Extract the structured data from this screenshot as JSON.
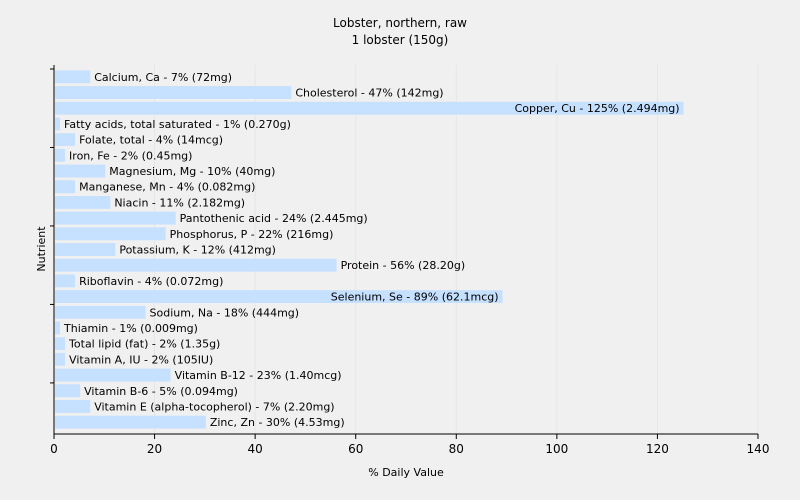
{
  "chart_data": {
    "type": "bar",
    "orientation": "horizontal",
    "title": "Lobster, northern, raw",
    "subtitle": "1 lobster (150g)",
    "xlabel": "% Daily Value",
    "ylabel": "Nutrient",
    "xlim": [
      0,
      140
    ],
    "xticks": [
      0,
      20,
      40,
      60,
      80,
      100,
      120,
      140
    ],
    "grid": true,
    "bar_color": "#c6e0ff",
    "grid_color": "#e6e6e6",
    "background": "#f0f0f0",
    "categories": [
      "Calcium, Ca",
      "Cholesterol",
      "Copper, Cu",
      "Fatty acids, total saturated",
      "Folate, total",
      "Iron, Fe",
      "Magnesium, Mg",
      "Manganese, Mn",
      "Niacin",
      "Pantothenic acid",
      "Phosphorus, P",
      "Potassium, K",
      "Protein",
      "Riboflavin",
      "Selenium, Se",
      "Sodium, Na",
      "Thiamin",
      "Total lipid (fat)",
      "Vitamin A, IU",
      "Vitamin B-12",
      "Vitamin B-6",
      "Vitamin E (alpha-tocopherol)",
      "Zinc, Zn"
    ],
    "values": [
      7,
      47,
      125,
      1,
      4,
      2,
      10,
      4,
      11,
      24,
      22,
      12,
      56,
      4,
      89,
      18,
      1,
      2,
      2,
      23,
      5,
      7,
      30
    ],
    "labels": [
      "Calcium, Ca - 7% (72mg)",
      "Cholesterol - 47% (142mg)",
      "Copper, Cu - 125% (2.494mg)",
      "Fatty acids, total saturated - 1% (0.270g)",
      "Folate, total - 4% (14mcg)",
      "Iron, Fe - 2% (0.45mg)",
      "Magnesium, Mg - 10% (40mg)",
      "Manganese, Mn - 4% (0.082mg)",
      "Niacin - 11% (2.182mg)",
      "Pantothenic acid - 24% (2.445mg)",
      "Phosphorus, P - 22% (216mg)",
      "Potassium, K - 12% (412mg)",
      "Protein - 56% (28.20g)",
      "Riboflavin - 4% (0.072mg)",
      "Selenium, Se - 89% (62.1mcg)",
      "Sodium, Na - 18% (444mg)",
      "Thiamin - 1% (0.009mg)",
      "Total lipid (fat) - 2% (1.35g)",
      "Vitamin A, IU - 2% (105IU)",
      "Vitamin B-12 - 23% (1.40mcg)",
      "Vitamin B-6 - 5% (0.094mg)",
      "Vitamin E (alpha-tocopherol) - 7% (2.20mg)",
      "Zinc, Zn - 30% (4.53mg)"
    ]
  }
}
